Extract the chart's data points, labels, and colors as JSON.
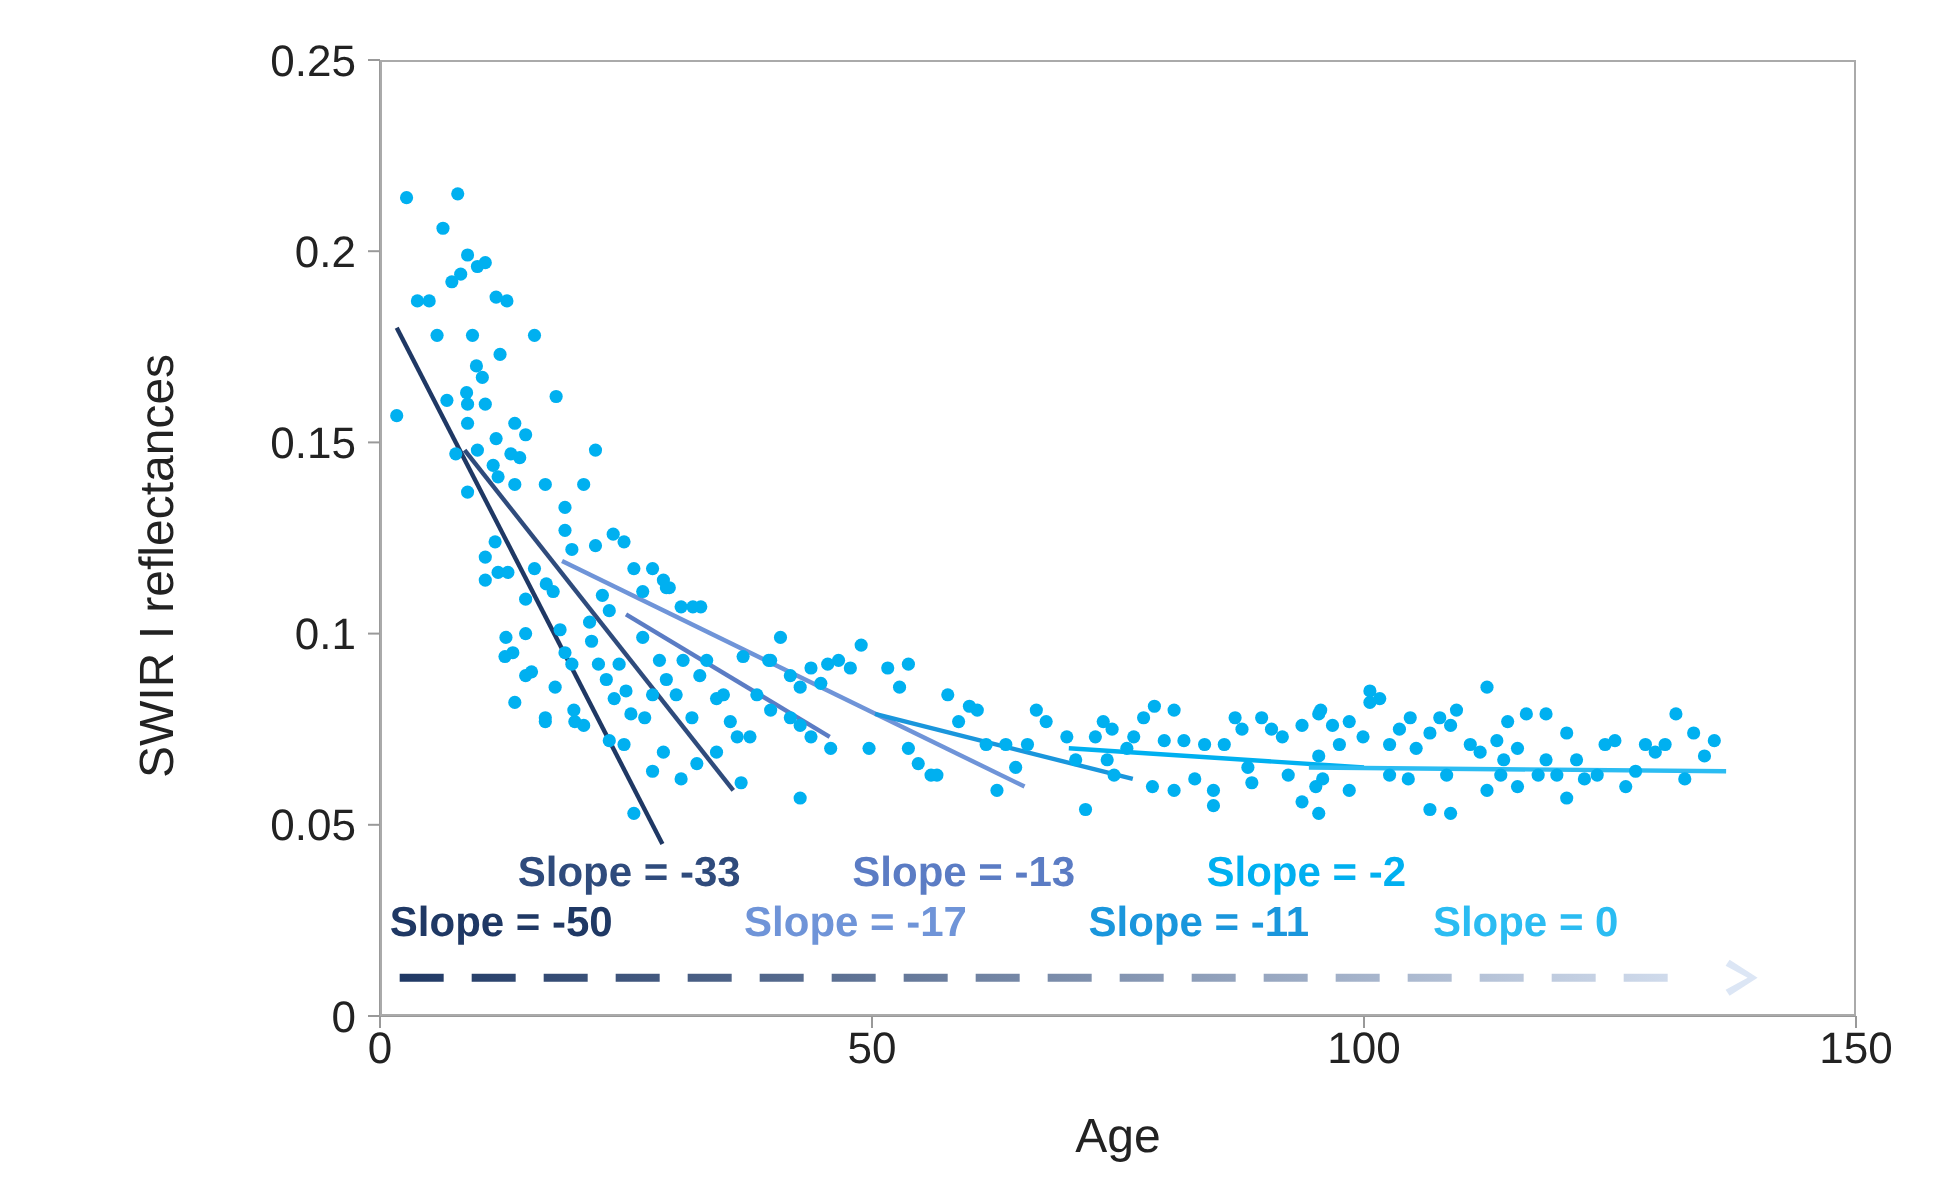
{
  "chart_data": {
    "type": "scatter",
    "xlabel": "Age",
    "ylabel": "SWIR I reflectances",
    "xlim": [
      0,
      150
    ],
    "xticks": [
      0,
      50,
      100,
      150
    ],
    "ylim": [
      0,
      0.25
    ],
    "yticks": [
      0,
      0.05,
      0.1,
      0.15,
      0.2,
      0.25
    ],
    "grid": false,
    "legend": false,
    "series": [
      {
        "type": "scatter",
        "marker": "circle",
        "color": "#00b0f0",
        "x": [
          2.7,
          7.9,
          6.4,
          1.7,
          3.8,
          5.0,
          8.9,
          9.9,
          10.7,
          7.3,
          8.2,
          11.8,
          12.9,
          5.8,
          9.4,
          15.7,
          12.2,
          9.8,
          10.4,
          6.8,
          8.8,
          8.9,
          10.7,
          17.9,
          8.9,
          13.7,
          14.8,
          11.8,
          13.3,
          14.2,
          7.7,
          9.9,
          21.9,
          8.9,
          11.5,
          12.0,
          13.7,
          16.8,
          20.7,
          18.8,
          18.8,
          21.9,
          23.7,
          24.8,
          11.7,
          10.7,
          10.7,
          12.0,
          13.0,
          15.7,
          16.9,
          17.6,
          14.8,
          19.5,
          22.6,
          25.8,
          26.7,
          27.7,
          28.8,
          29.4,
          30.6,
          32.6,
          23.3,
          21.3,
          12.8,
          13.5,
          12.7,
          14.8,
          15.4,
          14.8,
          13.7,
          16.8,
          16.8,
          18.3,
          18.8,
          19.5,
          17.8,
          19.7,
          19.8,
          20.7,
          21.5,
          22.2,
          23.0,
          23.8,
          24.3,
          25.0,
          25.5,
          26.7,
          26.9,
          27.7,
          28.4,
          29.1,
          30.1,
          30.8,
          31.7,
          32.5,
          33.2,
          34.2,
          34.9,
          35.6,
          36.3,
          34.2,
          32.2,
          30.6,
          27.7,
          28.8,
          24.8,
          23.3,
          25.8,
          36.7,
          37.6,
          39.5,
          36.9,
          31.8,
          29.1,
          38.3,
          40.7,
          39.7,
          41.7,
          43.8,
          45.5,
          46.6,
          47.8,
          48.9,
          42.7,
          44.8,
          39.7,
          41.7,
          42.7,
          43.8,
          45.8,
          42.7,
          51.6,
          53.7,
          52.8,
          49.7,
          53.7,
          54.7,
          56.0,
          56.6,
          57.7,
          58.8,
          59.9,
          60.7,
          61.6,
          63.6,
          64.6,
          62.7,
          66.7,
          67.7,
          65.8,
          69.8,
          70.7,
          71.7,
          72.7,
          73.5,
          74.4,
          73.9,
          74.6,
          75.9,
          76.6,
          77.6,
          78.7,
          80.7,
          79.7,
          81.7,
          78.5,
          80.7,
          82.8,
          83.8,
          84.7,
          84.7,
          85.8,
          86.9,
          87.6,
          88.2,
          89.6,
          90.6,
          91.7,
          92.3,
          93.7,
          93.7,
          95.6,
          95.1,
          88.6,
          95.4,
          100.6,
          101.6,
          100.6,
          96.8,
          98.5,
          99.9,
          97.5,
          95.4,
          95.8,
          98.5,
          95.4,
          102.6,
          103.6,
          104.7,
          105.3,
          106.7,
          107.7,
          108.8,
          109.4,
          108.4,
          106.7,
          108.8,
          104.5,
          102.6,
          110.8,
          111.8,
          112.5,
          112.5,
          113.5,
          114.6,
          114.2,
          113.9,
          115.6,
          115.6,
          116.5,
          117.7,
          118.5,
          118.5,
          119.6,
          120.6,
          120.6,
          121.6,
          122.4,
          123.7,
          124.5,
          125.5,
          126.6,
          127.6,
          128.6,
          129.6,
          130.6,
          131.7,
          132.6,
          133.5,
          134.6,
          135.6
        ],
        "values": [
          0.214,
          0.215,
          0.206,
          0.157,
          0.187,
          0.187,
          0.199,
          0.196,
          0.197,
          0.192,
          0.194,
          0.188,
          0.187,
          0.178,
          0.178,
          0.178,
          0.173,
          0.17,
          0.167,
          0.161,
          0.163,
          0.16,
          0.16,
          0.162,
          0.155,
          0.155,
          0.152,
          0.151,
          0.147,
          0.146,
          0.147,
          0.148,
          0.148,
          0.137,
          0.144,
          0.141,
          0.139,
          0.139,
          0.139,
          0.133,
          0.127,
          0.123,
          0.126,
          0.124,
          0.124,
          0.12,
          0.114,
          0.116,
          0.116,
          0.117,
          0.113,
          0.111,
          0.109,
          0.122,
          0.11,
          0.117,
          0.111,
          0.117,
          0.114,
          0.112,
          0.107,
          0.107,
          0.106,
          0.103,
          0.099,
          0.095,
          0.094,
          0.1,
          0.09,
          0.089,
          0.082,
          0.078,
          0.077,
          0.101,
          0.095,
          0.092,
          0.086,
          0.08,
          0.077,
          0.076,
          0.098,
          0.092,
          0.088,
          0.083,
          0.092,
          0.085,
          0.079,
          0.099,
          0.078,
          0.084,
          0.093,
          0.088,
          0.084,
          0.093,
          0.078,
          0.089,
          0.093,
          0.083,
          0.084,
          0.077,
          0.073,
          0.069,
          0.066,
          0.062,
          0.064,
          0.069,
          0.071,
          0.072,
          0.053,
          0.061,
          0.073,
          0.093,
          0.094,
          0.107,
          0.112,
          0.084,
          0.099,
          0.093,
          0.089,
          0.091,
          0.092,
          0.093,
          0.091,
          0.097,
          0.086,
          0.087,
          0.08,
          0.078,
          0.076,
          0.073,
          0.07,
          0.057,
          0.091,
          0.092,
          0.086,
          0.07,
          0.07,
          0.066,
          0.063,
          0.063,
          0.084,
          0.077,
          0.081,
          0.08,
          0.071,
          0.071,
          0.065,
          0.059,
          0.08,
          0.077,
          0.071,
          0.073,
          0.067,
          0.054,
          0.073,
          0.077,
          0.075,
          0.067,
          0.063,
          0.07,
          0.073,
          0.078,
          0.081,
          0.08,
          0.072,
          0.072,
          0.06,
          0.059,
          0.062,
          0.071,
          0.059,
          0.055,
          0.071,
          0.078,
          0.075,
          0.065,
          0.078,
          0.075,
          0.073,
          0.063,
          0.076,
          0.056,
          0.08,
          0.06,
          0.061,
          0.079,
          0.085,
          0.083,
          0.082,
          0.076,
          0.077,
          0.073,
          0.071,
          0.068,
          0.062,
          0.059,
          0.053,
          0.071,
          0.075,
          0.078,
          0.07,
          0.074,
          0.078,
          0.076,
          0.08,
          0.063,
          0.054,
          0.053,
          0.062,
          0.063,
          0.071,
          0.069,
          0.086,
          0.059,
          0.072,
          0.077,
          0.067,
          0.063,
          0.06,
          0.07,
          0.079,
          0.063,
          0.079,
          0.067,
          0.063,
          0.074,
          0.057,
          0.067,
          0.062,
          0.063,
          0.071,
          0.072,
          0.06,
          0.064,
          0.071,
          0.069,
          0.071,
          0.079,
          0.062,
          0.074,
          0.068,
          0.072
        ]
      },
      {
        "type": "line",
        "name": "Slope = -50",
        "color": "#1f3864",
        "x": [
          1.7,
          28.7
        ],
        "values": [
          0.18,
          0.045
        ]
      },
      {
        "type": "line",
        "name": "Slope = -33",
        "color": "#2f4b7c",
        "x": [
          8.6,
          35.9
        ],
        "values": [
          0.148,
          0.059
        ]
      },
      {
        "type": "line",
        "name": "Slope = -17",
        "color": "#6f94d8",
        "x": [
          18.5,
          65.5
        ],
        "values": [
          0.119,
          0.06
        ]
      },
      {
        "type": "line",
        "name": "Slope = -13",
        "color": "#5b7cc4",
        "x": [
          25,
          45.7
        ],
        "values": [
          0.105,
          0.073
        ]
      },
      {
        "type": "line",
        "name": "Slope = -11",
        "color": "#1a96dc",
        "x": [
          50.3,
          76.5
        ],
        "values": [
          0.079,
          0.062
        ]
      },
      {
        "type": "line",
        "name": "Slope = -2",
        "color": "#00b0f0",
        "x": [
          70,
          100
        ],
        "values": [
          0.07,
          0.065
        ]
      },
      {
        "type": "line",
        "name": "Slope = 0",
        "color": "#2bbcf2",
        "x": [
          94.4,
          136.8
        ],
        "values": [
          0.065,
          0.064
        ]
      }
    ]
  }
}
